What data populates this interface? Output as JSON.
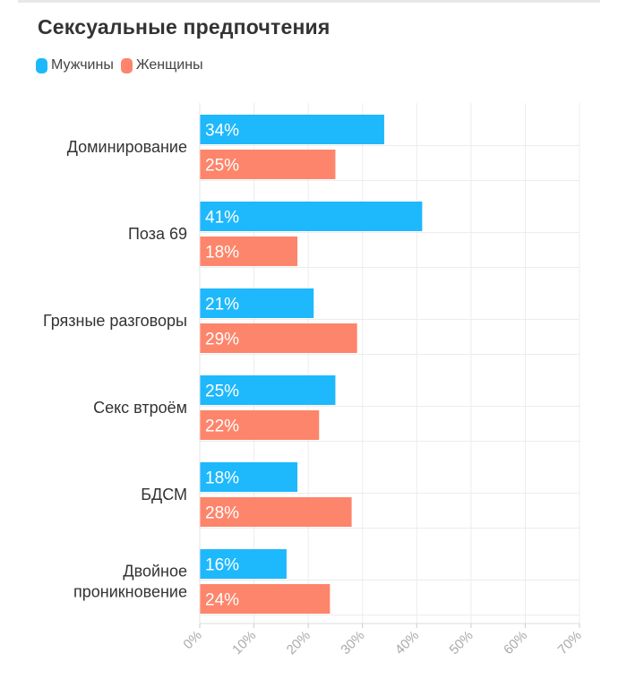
{
  "chart_data": {
    "type": "bar",
    "orientation": "horizontal",
    "title": "Сексуальные предпочтения",
    "categories": [
      "Доминирование",
      "Поза 69",
      "Грязные разговоры",
      "Секс втроём",
      "БДСМ",
      "Двойное проникновение"
    ],
    "category_lines": [
      [
        "Доминирование"
      ],
      [
        "Поза 69"
      ],
      [
        "Грязные разговоры"
      ],
      [
        "Секс втроём"
      ],
      [
        "БДСМ"
      ],
      [
        "Двойное",
        "проникновение"
      ]
    ],
    "series": [
      {
        "name": "Мужчины",
        "color": "#1eb8fc",
        "values": [
          34,
          41,
          21,
          25,
          18,
          16
        ],
        "labels": [
          "34%",
          "41%",
          "21%",
          "25%",
          "18%",
          "16%"
        ]
      },
      {
        "name": "Женщины",
        "color": "#fd856b",
        "values": [
          25,
          18,
          29,
          22,
          28,
          24
        ],
        "labels": [
          "25%",
          "18%",
          "29%",
          "22%",
          "28%",
          "24%"
        ]
      }
    ],
    "xlim": [
      0,
      70
    ],
    "xticks": [
      0,
      10,
      20,
      30,
      40,
      50,
      60,
      70
    ],
    "xtick_labels": [
      "0%",
      "10%",
      "20%",
      "30%",
      "40%",
      "50%",
      "60%",
      "70%"
    ],
    "xlabel": "",
    "ylabel": "",
    "grid": true,
    "legend_position": "top-left"
  }
}
